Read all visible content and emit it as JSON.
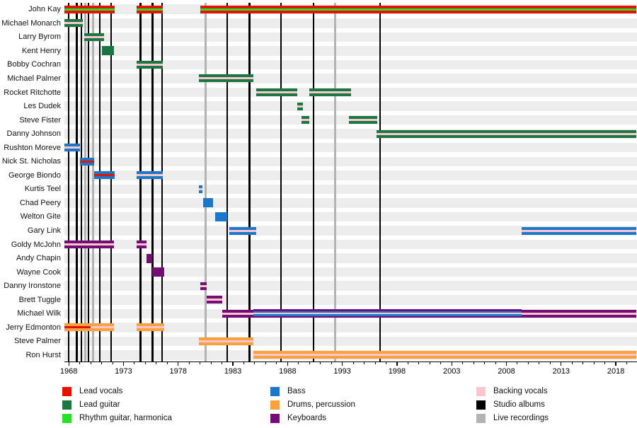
{
  "colors": {
    "lead_vocals": "#e41300",
    "lead_guitar": "#1a7742",
    "rhythm_guitar": "#29e029",
    "bass": "#1d77c9",
    "drums": "#f9a13c",
    "keyboards": "#760d76",
    "backing_vocals": "#ffc6cd",
    "studio_albums": "#000000",
    "live_recordings": "#b3b3b3"
  },
  "legend": {
    "columns": [
      [
        {
          "label": "Lead vocals",
          "color": "lead_vocals"
        },
        {
          "label": "Lead guitar",
          "color": "lead_guitar"
        },
        {
          "label": "Rhythm guitar, harmonica",
          "color": "rhythm_guitar"
        }
      ],
      [
        {
          "label": "Bass",
          "color": "bass"
        },
        {
          "label": "Drums, percussion",
          "color": "drums"
        },
        {
          "label": "Keyboards",
          "color": "keyboards"
        }
      ],
      [
        {
          "label": "Backing vocals",
          "color": "backing_vocals"
        },
        {
          "label": "Studio albums",
          "color": "studio_albums"
        },
        {
          "label": "Live recordings",
          "color": "live_recordings"
        }
      ]
    ]
  },
  "chart_data": {
    "type": "timeline",
    "x_start": 1967.6,
    "x_end": 2019.9,
    "axis": {
      "major_ticks": [
        1968,
        1973,
        1978,
        1983,
        1988,
        1993,
        1998,
        2003,
        2008,
        2013,
        2018
      ],
      "minor_start": 1968,
      "minor_end": 2020,
      "minor_step": 1
    },
    "styles": {
      "vocals_rhythm": [
        "lead_vocals",
        "rhythm_guitar",
        "lead_vocals"
      ],
      "guitar_backing": [
        "lead_guitar",
        "backing_vocals",
        "lead_guitar"
      ],
      "guitar": [
        "lead_guitar"
      ],
      "bass_backing": [
        "bass",
        "backing_vocals",
        "bass"
      ],
      "bass_vocals": [
        "bass",
        "lead_vocals",
        "bass"
      ],
      "bass": [
        "bass"
      ],
      "keys_backing": [
        "keyboards",
        "backing_vocals",
        "keyboards"
      ],
      "keys": [
        "keyboards"
      ],
      "keys_bass_backing": [
        "keyboards",
        "bass",
        "backing_vocals",
        "bass",
        "keyboards"
      ],
      "drums_vocals": [
        "drums",
        "lead_vocals",
        "drums"
      ],
      "drums_backing": [
        "drums",
        "backing_vocals",
        "drums"
      ]
    },
    "members": [
      {
        "name": "John Kay",
        "segments": [
          {
            "s": 1967.6,
            "e": 1972.2,
            "style": "vocals_rhythm"
          },
          {
            "s": 1974.2,
            "e": 1976.6,
            "style": "vocals_rhythm"
          },
          {
            "s": 1980.0,
            "e": 2019.9,
            "style": "vocals_rhythm"
          }
        ]
      },
      {
        "name": "Michael Monarch",
        "segments": [
          {
            "s": 1967.6,
            "e": 1969.3,
            "style": "guitar_backing"
          }
        ]
      },
      {
        "name": "Larry Byrom",
        "segments": [
          {
            "s": 1969.4,
            "e": 1971.2,
            "style": "guitar_backing"
          }
        ]
      },
      {
        "name": "Kent Henry",
        "segments": [
          {
            "s": 1971.0,
            "e": 1972.1,
            "style": "guitar"
          }
        ]
      },
      {
        "name": "Bobby Cochran",
        "segments": [
          {
            "s": 1974.2,
            "e": 1976.6,
            "style": "guitar_backing"
          }
        ]
      },
      {
        "name": "Michael Palmer",
        "segments": [
          {
            "s": 1979.9,
            "e": 1984.9,
            "style": "guitar_backing"
          }
        ]
      },
      {
        "name": "Rocket Ritchotte",
        "segments": [
          {
            "s": 1985.1,
            "e": 1988.9,
            "style": "guitar_backing"
          },
          {
            "s": 1990.0,
            "e": 1993.8,
            "style": "guitar_backing"
          }
        ]
      },
      {
        "name": "Les Dudek",
        "segments": [
          {
            "s": 1988.9,
            "e": 1989.4,
            "style": "guitar_backing"
          }
        ]
      },
      {
        "name": "Steve Fister",
        "segments": [
          {
            "s": 1989.3,
            "e": 1990.0,
            "style": "guitar_backing"
          },
          {
            "s": 1993.6,
            "e": 1996.2,
            "style": "guitar_backing"
          }
        ]
      },
      {
        "name": "Danny Johnson",
        "segments": [
          {
            "s": 1996.1,
            "e": 2019.9,
            "style": "guitar_backing"
          }
        ]
      },
      {
        "name": "Rushton Moreve",
        "segments": [
          {
            "s": 1967.6,
            "e": 1969.0,
            "style": "bass_backing"
          }
        ]
      },
      {
        "name": "Nick St. Nicholas",
        "segments": [
          {
            "s": 1969.0,
            "e": 1970.3,
            "style": "bass_vocals"
          }
        ]
      },
      {
        "name": "George Biondo",
        "segments": [
          {
            "s": 1970.3,
            "e": 1972.2,
            "style": "bass_vocals"
          },
          {
            "s": 1974.2,
            "e": 1976.6,
            "style": "bass_backing"
          }
        ]
      },
      {
        "name": "Kurtis Teel",
        "segments": [
          {
            "s": 1979.9,
            "e": 1980.2,
            "style": "bass_backing"
          }
        ]
      },
      {
        "name": "Chad Peery",
        "segments": [
          {
            "s": 1980.3,
            "e": 1981.2,
            "style": "bass"
          }
        ]
      },
      {
        "name": "Welton Gite",
        "segments": [
          {
            "s": 1981.4,
            "e": 1982.5,
            "style": "bass"
          }
        ]
      },
      {
        "name": "Gary Link",
        "segments": [
          {
            "s": 1982.7,
            "e": 1985.1,
            "style": "bass_backing"
          },
          {
            "s": 2009.4,
            "e": 2019.9,
            "style": "bass_backing"
          }
        ]
      },
      {
        "name": "Goldy McJohn",
        "segments": [
          {
            "s": 1967.6,
            "e": 1972.1,
            "style": "keys_backing"
          },
          {
            "s": 1974.2,
            "e": 1975.1,
            "style": "keys_backing"
          }
        ]
      },
      {
        "name": "Andy Chapin",
        "segments": [
          {
            "s": 1975.1,
            "e": 1975.6,
            "style": "keys"
          }
        ]
      },
      {
        "name": "Wayne Cook",
        "segments": [
          {
            "s": 1975.6,
            "e": 1976.7,
            "style": "keys"
          }
        ]
      },
      {
        "name": "Danny Ironstone",
        "segments": [
          {
            "s": 1980.0,
            "e": 1980.6,
            "style": "keys_backing"
          }
        ]
      },
      {
        "name": "Brett Tuggle",
        "segments": [
          {
            "s": 1980.6,
            "e": 1982.0,
            "style": "keys_backing"
          }
        ]
      },
      {
        "name": "Michael Wilk",
        "segments": [
          {
            "s": 1982.0,
            "e": 1984.9,
            "style": "keys_backing"
          },
          {
            "s": 1984.9,
            "e": 2009.4,
            "style": "keys_bass_backing"
          },
          {
            "s": 2009.4,
            "e": 2019.9,
            "style": "keys_backing"
          }
        ]
      },
      {
        "name": "Jerry Edmonton",
        "segments": [
          {
            "s": 1967.6,
            "e": 1970.0,
            "style": "drums_vocals"
          },
          {
            "s": 1970.0,
            "e": 1972.1,
            "style": "drums_backing"
          },
          {
            "s": 1974.2,
            "e": 1976.7,
            "style": "drums_backing"
          }
        ]
      },
      {
        "name": "Steve Palmer",
        "segments": [
          {
            "s": 1979.9,
            "e": 1984.9,
            "style": "drums_backing"
          }
        ]
      },
      {
        "name": "Ron Hurst",
        "segments": [
          {
            "s": 1984.9,
            "e": 2019.9,
            "style": "drums_backing"
          }
        ]
      }
    ],
    "studio_albums": [
      1967.99,
      1968.73,
      1969.17,
      1969.8,
      1970.85,
      1971.86,
      1974.55,
      1975.65,
      1976.51,
      1982.46,
      1984.51,
      1987.41,
      1990.36,
      1996.45
    ],
    "live_recordings": [
      1969.51,
      1970.23,
      1980.5,
      1992.35
    ]
  }
}
